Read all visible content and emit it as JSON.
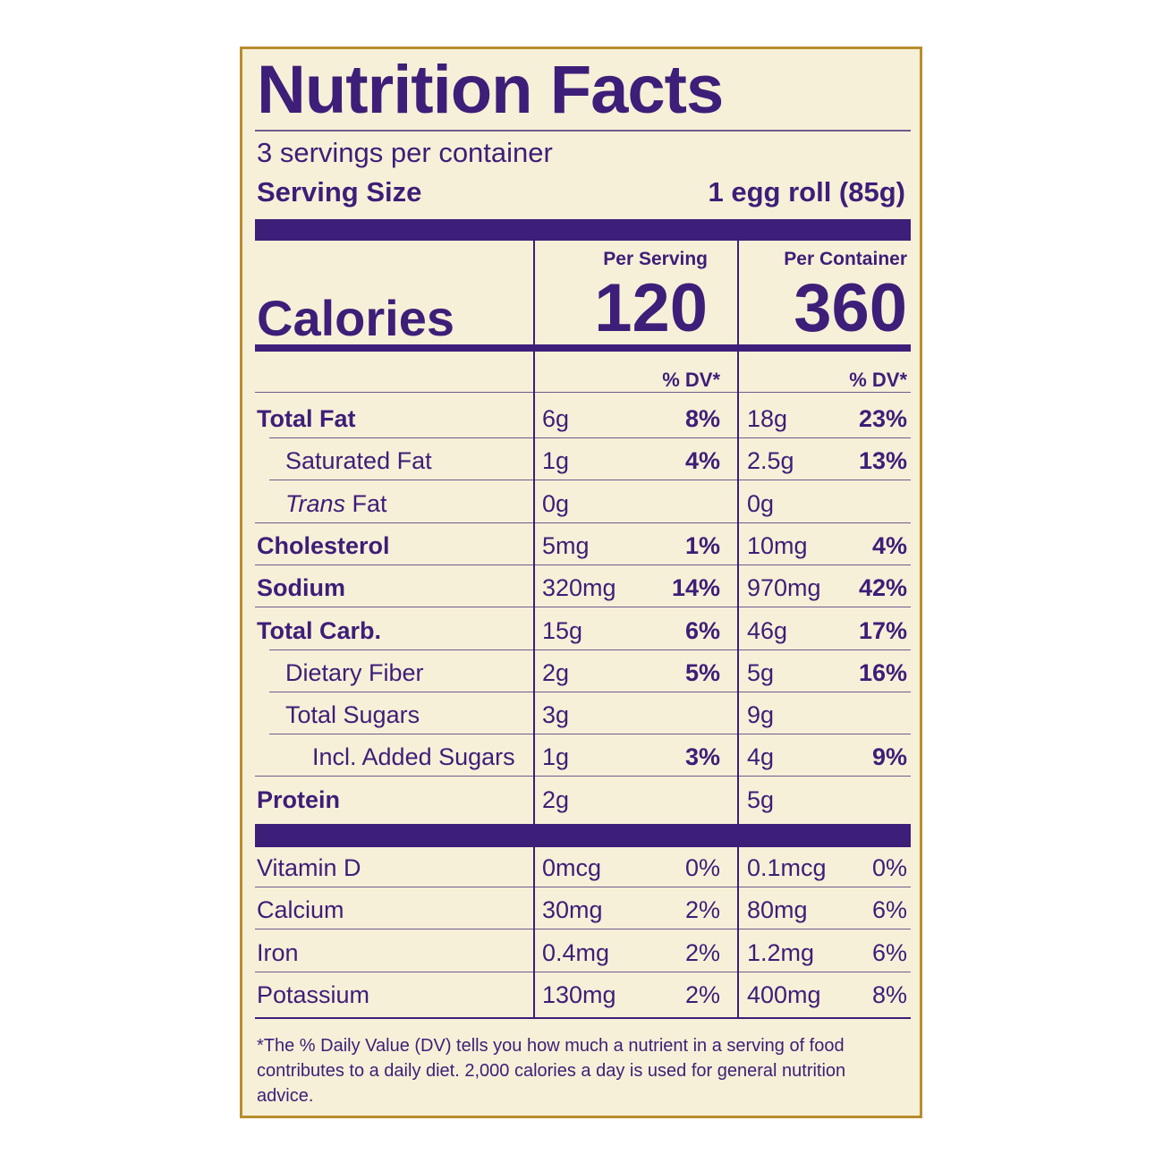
{
  "title": "Nutrition Facts",
  "servings_per_container": "3 servings per container",
  "serving_size_label": "Serving Size",
  "serving_size_value": "1 egg roll (85g)",
  "calories_label": "Calories",
  "per_serving_header": "Per Serving",
  "per_container_header": "Per Container",
  "calories_per_serving": "120",
  "calories_per_container": "360",
  "dv_header": "% DV*",
  "nutrients": [
    {
      "name": "Total Fat",
      "bold": true,
      "indent": 0,
      "s_amt": "6g",
      "s_dv": "8%",
      "c_amt": "18g",
      "c_dv": "23%"
    },
    {
      "name": "Saturated Fat",
      "bold": false,
      "indent": 1,
      "s_amt": "1g",
      "s_dv": "4%",
      "c_amt": "2.5g",
      "c_dv": "13%"
    },
    {
      "name_italic": "Trans",
      "name": " Fat",
      "bold": false,
      "indent": 1,
      "s_amt": "0g",
      "s_dv": "",
      "c_amt": "0g",
      "c_dv": ""
    },
    {
      "name": "Cholesterol",
      "bold": true,
      "indent": 0,
      "s_amt": "5mg",
      "s_dv": "1%",
      "c_amt": "10mg",
      "c_dv": "4%"
    },
    {
      "name": "Sodium",
      "bold": true,
      "indent": 0,
      "s_amt": "320mg",
      "s_dv": "14%",
      "c_amt": "970mg",
      "c_dv": "42%"
    },
    {
      "name": "Total Carb.",
      "bold": true,
      "indent": 0,
      "s_amt": "15g",
      "s_dv": "6%",
      "c_amt": "46g",
      "c_dv": "17%"
    },
    {
      "name": "Dietary Fiber",
      "bold": false,
      "indent": 1,
      "s_amt": "2g",
      "s_dv": "5%",
      "c_amt": "5g",
      "c_dv": "16%"
    },
    {
      "name": "Total Sugars",
      "bold": false,
      "indent": 1,
      "s_amt": "3g",
      "s_dv": "",
      "c_amt": "9g",
      "c_dv": ""
    },
    {
      "name": "Incl. Added Sugars",
      "bold": false,
      "indent": 2,
      "s_amt": "1g",
      "s_dv": "3%",
      "c_amt": "4g",
      "c_dv": "9%"
    },
    {
      "name": "Protein",
      "bold": true,
      "indent": 0,
      "s_amt": "2g",
      "s_dv": "",
      "c_amt": "5g",
      "c_dv": ""
    }
  ],
  "vitamins": [
    {
      "name": "Vitamin D",
      "s_amt": "0mcg",
      "s_dv": "0%",
      "c_amt": "0.1mcg",
      "c_dv": "0%"
    },
    {
      "name": "Calcium",
      "s_amt": "30mg",
      "s_dv": "2%",
      "c_amt": "80mg",
      "c_dv": "6%"
    },
    {
      "name": "Iron",
      "s_amt": "0.4mg",
      "s_dv": "2%",
      "c_amt": "1.2mg",
      "c_dv": "6%"
    },
    {
      "name": "Potassium",
      "s_amt": "130mg",
      "s_dv": "2%",
      "c_amt": "400mg",
      "c_dv": "8%"
    }
  ],
  "footnote": "*The % Daily Value (DV) tells you how much a nutrient in a serving of food contributes to a daily diet. 2,000 calories a day is used for general nutrition advice.",
  "colors": {
    "ink": "#3d1e78",
    "background": "#f7f0d8",
    "border": "#b88d2e"
  }
}
